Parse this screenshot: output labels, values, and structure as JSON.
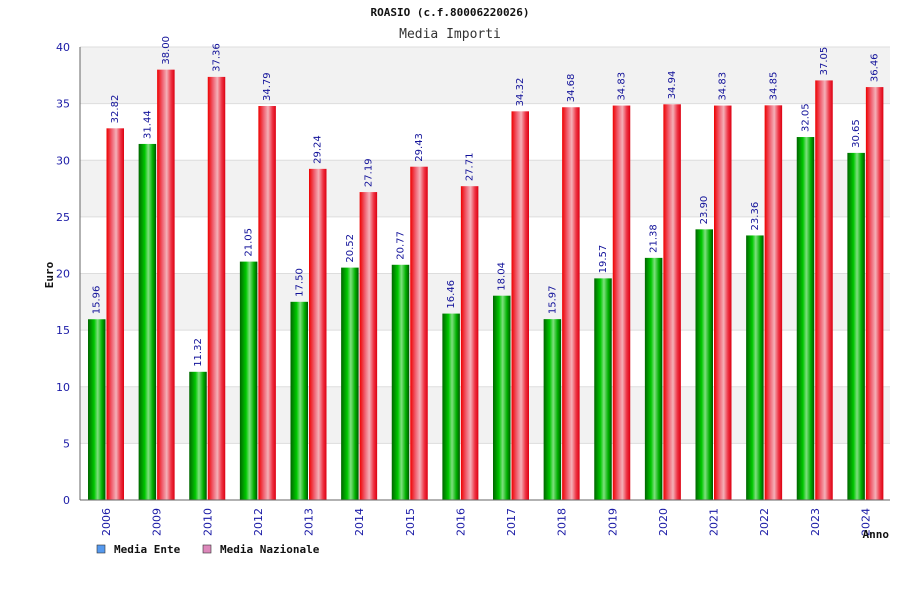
{
  "chart_data": {
    "type": "bar",
    "title": "ROASIO (c.f.80006220026)",
    "subtitle": "Media Importi",
    "xlabel": "Anno",
    "ylabel": "Euro",
    "ylim": [
      0,
      40
    ],
    "yticks": [
      0,
      5,
      10,
      15,
      20,
      25,
      30,
      35,
      40
    ],
    "grid": true,
    "legend_position": "bottom-left",
    "categories": [
      "2006",
      "2009",
      "2010",
      "2012",
      "2013",
      "2014",
      "2015",
      "2016",
      "2017",
      "2018",
      "2019",
      "2020",
      "2021",
      "2022",
      "2023",
      "2024"
    ],
    "series": [
      {
        "name": "Media Ente",
        "color": "#00aa00",
        "legend_color": "#5599ee",
        "values": [
          15.96,
          31.44,
          11.32,
          21.05,
          17.5,
          20.52,
          20.77,
          16.46,
          18.04,
          15.97,
          19.57,
          21.38,
          23.9,
          23.36,
          32.05,
          30.65
        ],
        "labels": [
          "15.96",
          "31.44",
          "11.32",
          "21.05",
          "17.50",
          "20.52",
          "20.77",
          "16.46",
          "18.04",
          "15.97",
          "19.57",
          "21.38",
          "23.90",
          "23.36",
          "32.05",
          "30.65"
        ]
      },
      {
        "name": "Media Nazionale",
        "color": "#ee1122",
        "legend_color": "#dd88bb",
        "values": [
          32.82,
          38.0,
          37.36,
          34.79,
          29.24,
          27.19,
          29.43,
          27.71,
          34.32,
          34.68,
          34.83,
          34.94,
          34.83,
          34.85,
          37.05,
          36.46
        ],
        "labels": [
          "32.82",
          "38.00",
          "37.36",
          "34.79",
          "29.24",
          "27.19",
          "29.43",
          "27.71",
          "34.32",
          "34.68",
          "34.83",
          "34.94",
          "34.83",
          "34.85",
          "37.05",
          "36.46"
        ]
      }
    ]
  }
}
